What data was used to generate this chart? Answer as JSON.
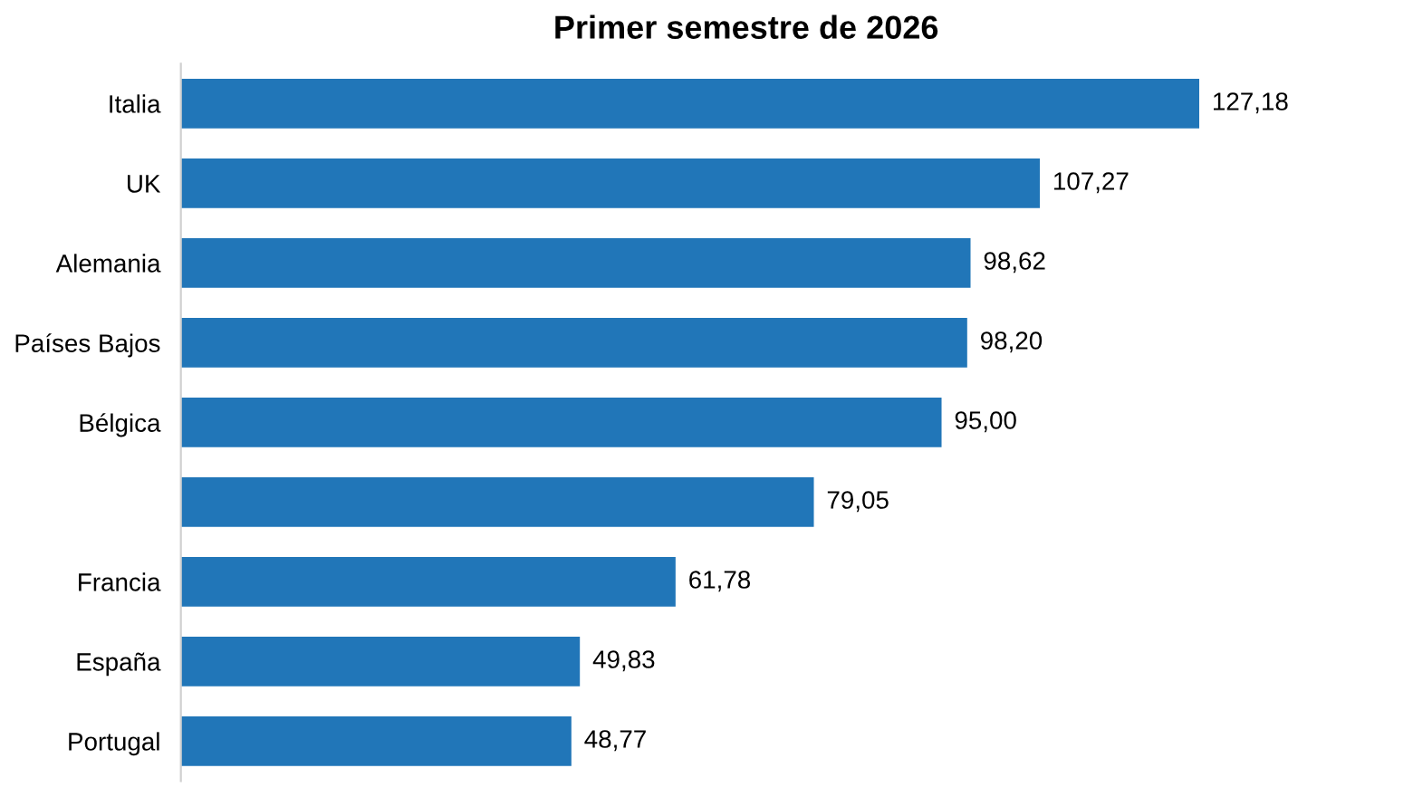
{
  "chart_data": {
    "type": "bar",
    "orientation": "horizontal",
    "title": "Primer semestre de 2026",
    "categories": [
      "Italia",
      "UK",
      "Alemania",
      "Países Bajos",
      "Bélgica",
      null,
      "Francia",
      "España",
      "Portugal"
    ],
    "values": [
      127.18,
      107.27,
      98.62,
      98.2,
      95.0,
      79.05,
      61.78,
      49.83,
      48.77
    ],
    "value_labels": [
      "127,18",
      "107,27",
      "98,62",
      "98,20",
      "95,00",
      "79,05",
      "61,78",
      "49,83",
      "48,77"
    ],
    "color": "#2176b8"
  }
}
